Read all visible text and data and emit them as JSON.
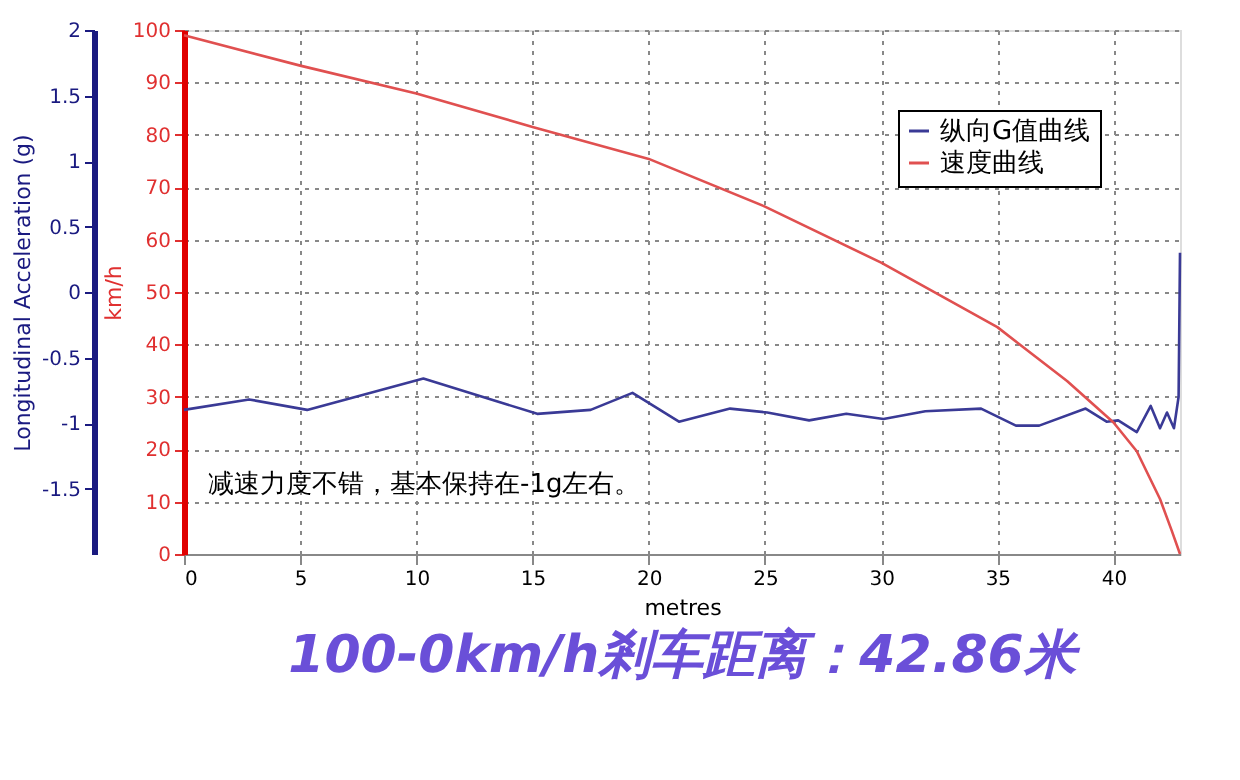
{
  "chart_data": {
    "type": "line",
    "title": "100-0km/h剎车距离：42.86米",
    "xlabel": "metres",
    "ylabel": "km/h",
    "y2label": "Longitudinal Acceleration (g)",
    "xlim": [
      0,
      42.86
    ],
    "xticks": [
      0,
      5,
      10,
      15,
      20,
      25,
      30,
      35,
      40
    ],
    "ylim": [
      0,
      100
    ],
    "yticks": [
      0,
      10,
      20,
      30,
      40,
      50,
      60,
      70,
      80,
      90,
      100
    ],
    "y2lim": [
      -2,
      2
    ],
    "y2ticks": [
      -1.5,
      -1,
      -0.5,
      0,
      0.5,
      1,
      1.5,
      2
    ],
    "grid": true,
    "legend": "top right",
    "line_style": "solid",
    "marker": "none",
    "annotations": [
      "减速力度不错，基本保持在-1g左右。"
    ],
    "series": [
      {
        "name": "纵向G值曲线",
        "color": "#3a3a96",
        "axis": "y2",
        "x": [
          0,
          2.8,
          5.3,
          10.3,
          15.2,
          17.5,
          19.3,
          21.3,
          23.5,
          25.1,
          26.9,
          28.5,
          30.1,
          31.9,
          34.3,
          35.8,
          36.8,
          38.8,
          39.7,
          40.2,
          41.0,
          41.6,
          42.0,
          42.3,
          42.6,
          42.8,
          42.86
        ],
        "values": [
          -0.9,
          -0.82,
          -0.9,
          -0.66,
          -0.93,
          -0.9,
          -0.77,
          -0.99,
          -0.89,
          -0.92,
          -0.98,
          -0.93,
          -0.97,
          -0.91,
          -0.89,
          -1.02,
          -1.02,
          -0.89,
          -0.99,
          -0.98,
          -1.07,
          -0.87,
          -1.04,
          -0.92,
          -1.04,
          -0.8,
          0.3
        ]
      },
      {
        "name": "速度曲线",
        "color": "#e05050",
        "x": [
          0,
          5,
          10,
          15,
          20,
          25,
          30,
          35,
          38,
          40,
          41,
          42,
          42.5,
          42.86
        ],
        "values": [
          99,
          93.2,
          87.9,
          81.5,
          75.4,
          66.3,
          55.6,
          43.3,
          33,
          25.1,
          19.6,
          10.5,
          4.5,
          0
        ]
      }
    ]
  }
}
